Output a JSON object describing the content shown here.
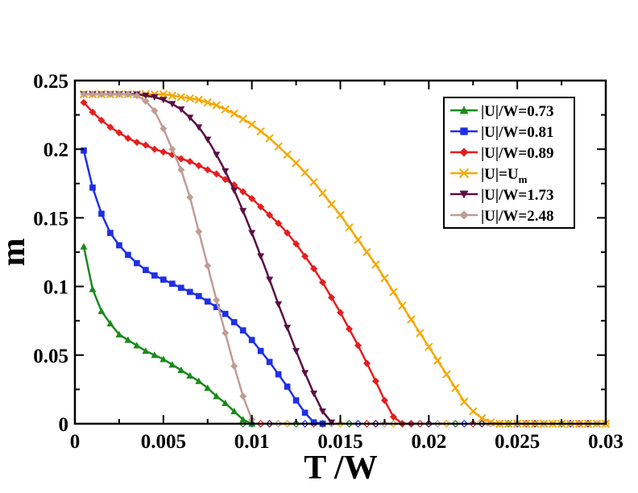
{
  "chart_data": {
    "type": "line",
    "title": "",
    "xlabel": "T /W",
    "ylabel": "m",
    "xlim": [
      0,
      0.03
    ],
    "ylim": [
      0,
      0.25
    ],
    "xticks": [
      0,
      0.005,
      0.01,
      0.015,
      0.02,
      0.025,
      0.03
    ],
    "xtick_labels": [
      "0",
      "0.005",
      "0.01",
      "0.015",
      "0.02",
      "0.025",
      "0.03"
    ],
    "yticks": [
      0,
      0.05,
      0.1,
      0.15,
      0.2,
      0.25
    ],
    "ytick_labels": [
      "0",
      "0.05",
      "0.1",
      "0.15",
      "0.2",
      "0.25"
    ],
    "grid": false,
    "legend_position": "top-right",
    "series": [
      {
        "name": "|U|/W=0.73",
        "color": "#1a8a1a",
        "marker": "triangle-up",
        "x": [
          0.0005,
          0.001,
          0.0015,
          0.002,
          0.0025,
          0.003,
          0.0035,
          0.004,
          0.0045,
          0.005,
          0.0055,
          0.006,
          0.0065,
          0.007,
          0.0075,
          0.008,
          0.0085,
          0.009,
          0.0095,
          0.01
        ],
        "y": [
          0.129,
          0.098,
          0.082,
          0.073,
          0.065,
          0.061,
          0.057,
          0.053,
          0.05,
          0.047,
          0.043,
          0.039,
          0.035,
          0.031,
          0.026,
          0.02,
          0.015,
          0.009,
          0.003,
          0.0
        ]
      },
      {
        "name": "|U|/W=0.81",
        "color": "#1f2fe6",
        "marker": "square",
        "x": [
          0.0005,
          0.001,
          0.0015,
          0.002,
          0.0025,
          0.003,
          0.0035,
          0.004,
          0.0045,
          0.005,
          0.0055,
          0.006,
          0.0065,
          0.007,
          0.0075,
          0.008,
          0.0085,
          0.009,
          0.0095,
          0.01,
          0.0105,
          0.011,
          0.0115,
          0.012,
          0.0125,
          0.013,
          0.0135,
          0.014
        ],
        "y": [
          0.199,
          0.172,
          0.153,
          0.139,
          0.13,
          0.123,
          0.117,
          0.112,
          0.108,
          0.105,
          0.102,
          0.099,
          0.096,
          0.093,
          0.089,
          0.085,
          0.08,
          0.074,
          0.068,
          0.061,
          0.053,
          0.045,
          0.036,
          0.027,
          0.017,
          0.008,
          0.001,
          0.0
        ]
      },
      {
        "name": "|U|/W=0.89",
        "color": "#e61e1e",
        "marker": "diamond",
        "x": [
          0.0005,
          0.001,
          0.0015,
          0.002,
          0.0025,
          0.003,
          0.0035,
          0.004,
          0.0045,
          0.005,
          0.0055,
          0.006,
          0.0065,
          0.007,
          0.0075,
          0.008,
          0.0085,
          0.009,
          0.0095,
          0.01,
          0.0105,
          0.011,
          0.0115,
          0.012,
          0.0125,
          0.013,
          0.0135,
          0.014,
          0.0145,
          0.015,
          0.0155,
          0.016,
          0.0165,
          0.017,
          0.0175,
          0.018,
          0.0185,
          0.019
        ],
        "y": [
          0.234,
          0.227,
          0.221,
          0.216,
          0.212,
          0.208,
          0.205,
          0.203,
          0.2,
          0.198,
          0.196,
          0.193,
          0.191,
          0.188,
          0.185,
          0.182,
          0.178,
          0.174,
          0.169,
          0.164,
          0.158,
          0.152,
          0.146,
          0.139,
          0.131,
          0.122,
          0.113,
          0.103,
          0.092,
          0.081,
          0.069,
          0.057,
          0.044,
          0.031,
          0.017,
          0.005,
          0.0,
          0.0
        ]
      },
      {
        "name": "|U|=U",
        "name_sub": "m",
        "color": "#f5a800",
        "marker": "x",
        "x": [
          0.0005,
          0.001,
          0.0015,
          0.002,
          0.0025,
          0.003,
          0.0035,
          0.004,
          0.0045,
          0.005,
          0.0055,
          0.006,
          0.0065,
          0.007,
          0.0075,
          0.008,
          0.0085,
          0.009,
          0.0095,
          0.01,
          0.0105,
          0.011,
          0.0115,
          0.012,
          0.0125,
          0.013,
          0.0135,
          0.014,
          0.0145,
          0.015,
          0.0155,
          0.016,
          0.0165,
          0.017,
          0.0175,
          0.018,
          0.0185,
          0.019,
          0.0195,
          0.02,
          0.0205,
          0.021,
          0.0215,
          0.022,
          0.0225,
          0.023,
          0.0235,
          0.024,
          0.0245,
          0.025,
          0.0255,
          0.026,
          0.0265,
          0.027,
          0.0275,
          0.028,
          0.0285,
          0.029,
          0.0295,
          0.03
        ],
        "y": [
          0.24,
          0.24,
          0.24,
          0.24,
          0.24,
          0.24,
          0.24,
          0.24,
          0.24,
          0.24,
          0.239,
          0.238,
          0.237,
          0.236,
          0.234,
          0.232,
          0.229,
          0.226,
          0.222,
          0.218,
          0.213,
          0.208,
          0.202,
          0.196,
          0.19,
          0.183,
          0.176,
          0.168,
          0.16,
          0.152,
          0.143,
          0.134,
          0.125,
          0.116,
          0.106,
          0.096,
          0.086,
          0.076,
          0.066,
          0.056,
          0.046,
          0.036,
          0.026,
          0.016,
          0.009,
          0.004,
          0.001,
          0.0,
          0.0,
          0.0,
          0.0,
          0.0,
          0.0,
          0.0,
          0.0,
          0.0,
          0.0,
          0.0,
          0.0,
          0.0
        ]
      },
      {
        "name": "|U|/W=1.73",
        "color": "#5a0f45",
        "marker": "triangle-down",
        "x": [
          0.0005,
          0.001,
          0.0015,
          0.002,
          0.0025,
          0.003,
          0.0035,
          0.004,
          0.0045,
          0.005,
          0.0055,
          0.006,
          0.0065,
          0.007,
          0.0075,
          0.008,
          0.0085,
          0.009,
          0.0095,
          0.01,
          0.0105,
          0.011,
          0.0115,
          0.012,
          0.0125,
          0.013,
          0.0135,
          0.014,
          0.0145
        ],
        "y": [
          0.24,
          0.24,
          0.24,
          0.24,
          0.24,
          0.24,
          0.24,
          0.239,
          0.238,
          0.236,
          0.233,
          0.229,
          0.223,
          0.216,
          0.207,
          0.196,
          0.184,
          0.17,
          0.155,
          0.139,
          0.122,
          0.105,
          0.087,
          0.07,
          0.053,
          0.037,
          0.022,
          0.009,
          0.001
        ]
      },
      {
        "name": "|U|/W=2.48",
        "color": "#c09c94",
        "marker": "diamond",
        "x": [
          0.0005,
          0.001,
          0.0015,
          0.002,
          0.0025,
          0.003,
          0.0035,
          0.004,
          0.0045,
          0.005,
          0.0055,
          0.006,
          0.0065,
          0.007,
          0.0075,
          0.008,
          0.0085,
          0.009,
          0.0095,
          0.01
        ],
        "y": [
          0.24,
          0.24,
          0.24,
          0.24,
          0.24,
          0.24,
          0.239,
          0.235,
          0.228,
          0.215,
          0.2,
          0.185,
          0.165,
          0.14,
          0.115,
          0.09,
          0.066,
          0.042,
          0.02,
          0.003
        ]
      }
    ],
    "zero_markers": {
      "x_start": 0.0095,
      "x_end": 0.03,
      "step": 0.0005,
      "colors": [
        "#1a8a1a",
        "#1f2fe6",
        "#e61e1e",
        "#5a0f45",
        "#c09c94",
        "#f5a800"
      ]
    }
  }
}
